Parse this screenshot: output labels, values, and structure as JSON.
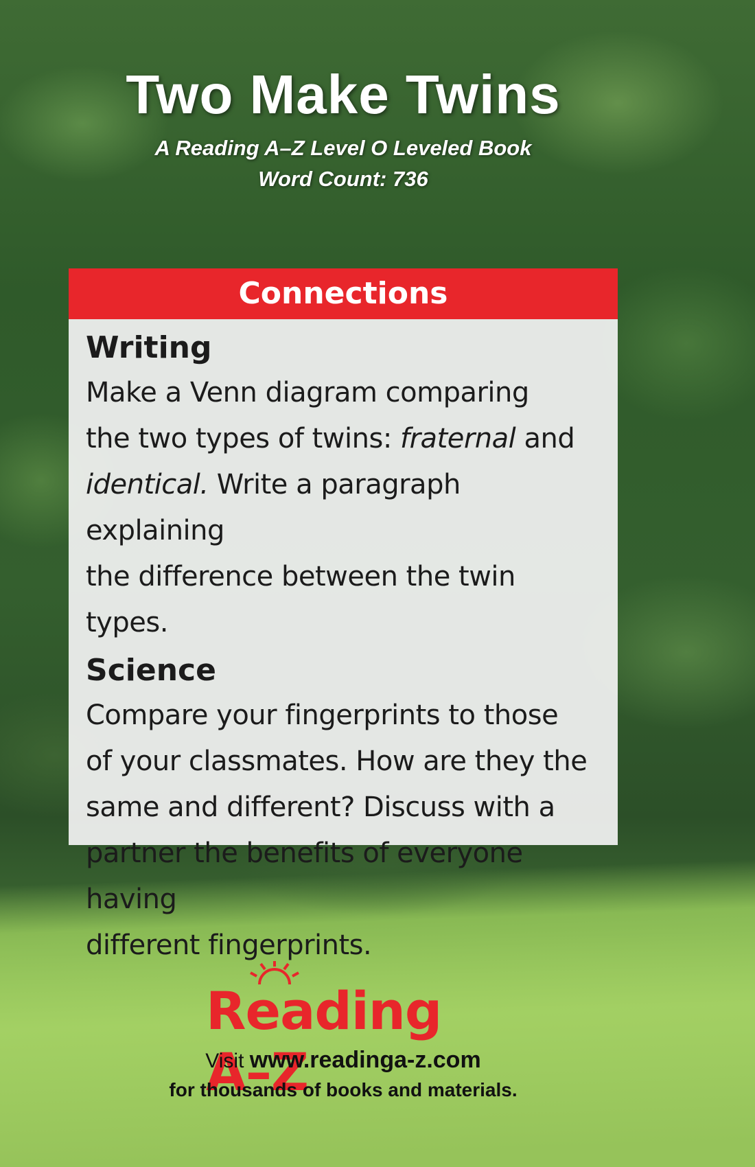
{
  "cover": {
    "title": "Two Make Twins",
    "subtitle": "A Reading A–Z Level O Leveled Book",
    "word_count": "Word Count: 736"
  },
  "connections": {
    "header": "Connections",
    "writing": {
      "heading": "Writing",
      "line1": "Make a Venn diagram comparing",
      "line2_a": "the two types of twins: ",
      "line2_em": "fraternal",
      "line2_b": " and",
      "line3_em": "identical.",
      "line3_b": " Write a paragraph explaining",
      "line4": "the difference between the twin types."
    },
    "science": {
      "heading": "Science",
      "line1": "Compare your fingerprints to those",
      "line2": "of your classmates. How are they the",
      "line3": "same and different? Discuss with a",
      "line4": "partner the benefits of everyone having",
      "line5": "different fingerprints."
    }
  },
  "footer": {
    "logo": "Reading A–Z",
    "visit_label": "Visit ",
    "url": "www.readinga-z.com",
    "tagline": "for thousands of books and materials."
  },
  "colors": {
    "accent_red": "#e8262b",
    "panel_bg": "#f2f2f2"
  }
}
